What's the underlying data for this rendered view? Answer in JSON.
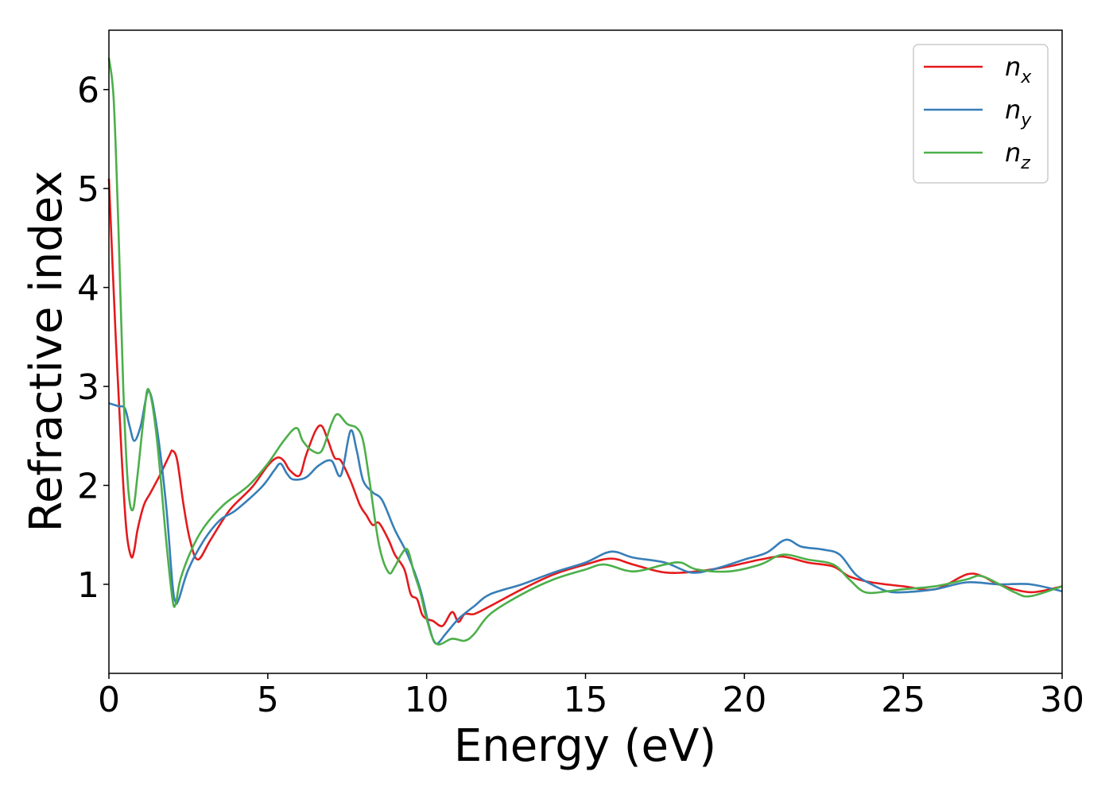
{
  "chart_data": {
    "type": "line",
    "xlabel": "Energy (eV)",
    "ylabel": "Refractive index",
    "xlim": [
      0,
      30
    ],
    "ylim": [
      0.1,
      6.6
    ],
    "xticks": [
      0,
      5,
      10,
      15,
      20,
      25,
      30
    ],
    "yticks": [
      1,
      2,
      3,
      4,
      5,
      6
    ],
    "grid": false,
    "legend_position": "top-right",
    "series": [
      {
        "name": "n",
        "subscript": "x",
        "color": "#e41a1c",
        "x": [
          0,
          0.2,
          0.4,
          0.55,
          0.7,
          0.8,
          0.9,
          1.1,
          1.3,
          1.6,
          1.9,
          2.0,
          2.15,
          2.35,
          2.55,
          2.8,
          3.2,
          3.8,
          4.5,
          5.0,
          5.3,
          5.5,
          5.7,
          6.0,
          6.2,
          6.5,
          6.7,
          6.9,
          7.1,
          7.3,
          7.6,
          7.9,
          8.1,
          8.3,
          8.5,
          8.8,
          9.0,
          9.3,
          9.5,
          9.7,
          9.85,
          10.0,
          10.2,
          10.5,
          10.8,
          11.0,
          11.2,
          11.5,
          12.0,
          13.0,
          14.0,
          15.0,
          15.8,
          16.5,
          17.5,
          18.5,
          19.5,
          20.5,
          21.2,
          22.0,
          22.8,
          23.3,
          24.0,
          25.0,
          26.0,
          27.0,
          27.5,
          28.0,
          29.0,
          30.0
        ],
        "values": [
          5.1,
          3.6,
          2.3,
          1.55,
          1.28,
          1.35,
          1.55,
          1.8,
          1.92,
          2.1,
          2.3,
          2.35,
          2.25,
          1.8,
          1.45,
          1.25,
          1.45,
          1.75,
          1.98,
          2.2,
          2.28,
          2.25,
          2.15,
          2.1,
          2.3,
          2.55,
          2.6,
          2.45,
          2.28,
          2.25,
          2.05,
          1.8,
          1.7,
          1.6,
          1.62,
          1.45,
          1.3,
          1.15,
          0.9,
          0.85,
          0.7,
          0.65,
          0.63,
          0.58,
          0.72,
          0.62,
          0.7,
          0.7,
          0.78,
          0.95,
          1.1,
          1.2,
          1.26,
          1.2,
          1.12,
          1.13,
          1.18,
          1.25,
          1.28,
          1.22,
          1.18,
          1.08,
          1.02,
          0.98,
          0.95,
          1.1,
          1.08,
          1.0,
          0.92,
          0.98
        ]
      },
      {
        "name": "n",
        "subscript": "y",
        "color": "#377eb8",
        "x": [
          0,
          0.3,
          0.5,
          0.65,
          0.8,
          1.0,
          1.25,
          1.5,
          1.8,
          2.0,
          2.1,
          2.2,
          2.5,
          3.0,
          3.5,
          4.0,
          4.8,
          5.2,
          5.4,
          5.6,
          5.8,
          6.2,
          6.6,
          7.0,
          7.3,
          7.6,
          7.8,
          8.0,
          8.3,
          8.6,
          9.0,
          9.4,
          9.8,
          10.1,
          10.3,
          10.6,
          11.0,
          11.5,
          12.0,
          13.0,
          14.0,
          15.0,
          15.8,
          16.5,
          17.5,
          18.3,
          19.0,
          20.0,
          20.7,
          21.3,
          21.8,
          22.5,
          23.0,
          23.5,
          24.0,
          24.5,
          25.0,
          26.0,
          27.0,
          28.0,
          29.0,
          30.0
        ],
        "values": [
          2.83,
          2.8,
          2.78,
          2.6,
          2.45,
          2.6,
          2.95,
          2.6,
          1.8,
          1.0,
          0.82,
          0.85,
          1.15,
          1.45,
          1.65,
          1.75,
          1.98,
          2.15,
          2.22,
          2.12,
          2.06,
          2.08,
          2.2,
          2.25,
          2.1,
          2.55,
          2.35,
          2.05,
          1.93,
          1.85,
          1.55,
          1.3,
          0.95,
          0.55,
          0.4,
          0.5,
          0.65,
          0.78,
          0.9,
          1.0,
          1.12,
          1.22,
          1.33,
          1.27,
          1.22,
          1.12,
          1.15,
          1.25,
          1.32,
          1.45,
          1.38,
          1.35,
          1.3,
          1.1,
          1.0,
          0.93,
          0.92,
          0.95,
          1.02,
          1.0,
          1.0,
          0.93
        ]
      },
      {
        "name": "n",
        "subscript": "z",
        "color": "#4daf4a",
        "x": [
          0,
          0.15,
          0.3,
          0.45,
          0.6,
          0.75,
          0.9,
          1.1,
          1.25,
          1.5,
          1.8,
          2.0,
          2.1,
          2.25,
          2.6,
          3.0,
          3.6,
          4.4,
          5.0,
          5.5,
          5.9,
          6.1,
          6.4,
          6.7,
          7.0,
          7.2,
          7.5,
          7.8,
          8.0,
          8.2,
          8.5,
          8.8,
          9.0,
          9.2,
          9.4,
          9.6,
          9.8,
          10.0,
          10.3,
          10.8,
          11.2,
          11.5,
          12.0,
          13.0,
          14.0,
          15.0,
          15.6,
          16.5,
          17.5,
          18.0,
          18.5,
          19.5,
          20.5,
          21.2,
          22.0,
          22.8,
          23.3,
          23.8,
          24.5,
          25.0,
          26.0,
          27.0,
          27.5,
          28.5,
          29.0,
          30.0
        ],
        "values": [
          6.32,
          5.9,
          4.6,
          3.0,
          2.0,
          1.75,
          2.1,
          2.7,
          2.97,
          2.5,
          1.45,
          0.85,
          0.8,
          1.05,
          1.35,
          1.58,
          1.8,
          2.0,
          2.22,
          2.45,
          2.58,
          2.45,
          2.35,
          2.35,
          2.62,
          2.72,
          2.62,
          2.58,
          2.45,
          2.05,
          1.4,
          1.12,
          1.18,
          1.3,
          1.35,
          1.12,
          0.92,
          0.65,
          0.4,
          0.45,
          0.43,
          0.5,
          0.7,
          0.9,
          1.05,
          1.15,
          1.2,
          1.13,
          1.2,
          1.22,
          1.15,
          1.13,
          1.2,
          1.3,
          1.25,
          1.2,
          1.05,
          0.92,
          0.93,
          0.95,
          0.98,
          1.05,
          1.08,
          0.92,
          0.88,
          0.98
        ]
      }
    ]
  }
}
